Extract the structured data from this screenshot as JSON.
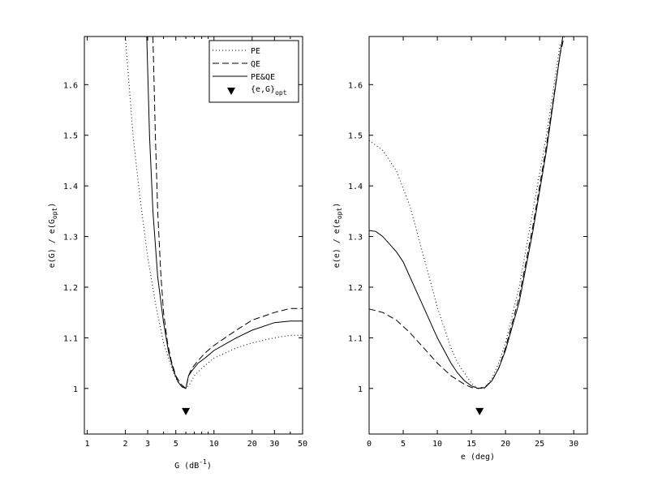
{
  "chart_data": [
    {
      "type": "line",
      "title": "",
      "xscale": "log",
      "xlabel_main": "G (dB",
      "xlabel_sup": "-1",
      "xlabel_tail": ")",
      "ylabel_main": "e(G) / e(G",
      "ylabel_sub": "opt",
      "ylabel_tail": ")",
      "xlim": [
        0.95,
        50
      ],
      "ylim": [
        0.91,
        1.695
      ],
      "xticks": [
        1,
        2,
        3,
        5,
        10,
        20,
        30,
        50
      ],
      "xticklabels": [
        "1",
        "2",
        "3",
        "5",
        "10",
        "20",
        "30",
        "50"
      ],
      "xminorticks": [
        4,
        6,
        7,
        8,
        9,
        40
      ],
      "yticks": [
        1.0,
        1.1,
        1.2,
        1.3,
        1.4,
        1.5,
        1.6
      ],
      "yticklabels": [
        "1",
        "1.1",
        "1.2",
        "1.3",
        "1.4",
        "1.5",
        "1.6"
      ],
      "legend": {
        "placement": "top-right",
        "entries": [
          {
            "label": "PE",
            "style": "dotted"
          },
          {
            "label": "QE",
            "style": "dashed"
          },
          {
            "label": "PE&QE",
            "style": "solid"
          },
          {
            "label_main": "{e,G}",
            "label_sub": "opt",
            "style": "marker"
          }
        ]
      },
      "marker": {
        "x": 6.0,
        "y": 0.955
      },
      "series": [
        {
          "name": "PE",
          "style": "dotted",
          "x": [
            2.0,
            2.3,
            2.6,
            3.0,
            3.5,
            4.0,
            4.5,
            5.0,
            5.5,
            6.0,
            6.5,
            7.0,
            8.0,
            10.0,
            15.0,
            20.0,
            30.0,
            40.0,
            50.0
          ],
          "y": [
            1.695,
            1.5,
            1.38,
            1.26,
            1.16,
            1.09,
            1.05,
            1.02,
            1.006,
            1.0,
            1.01,
            1.025,
            1.04,
            1.06,
            1.08,
            1.09,
            1.1,
            1.105,
            1.105
          ]
        },
        {
          "name": "QE",
          "style": "dashed",
          "x": [
            3.3,
            3.45,
            3.6,
            3.8,
            4.0,
            4.3,
            4.6,
            5.0,
            5.5,
            6.0,
            6.3,
            6.7,
            7.5,
            8.5,
            10.0,
            15.0,
            20.0,
            30.0,
            40.0,
            50.0
          ],
          "y": [
            1.695,
            1.5,
            1.35,
            1.23,
            1.15,
            1.09,
            1.055,
            1.025,
            1.008,
            1.0,
            1.025,
            1.04,
            1.055,
            1.07,
            1.085,
            1.115,
            1.135,
            1.15,
            1.158,
            1.158
          ]
        },
        {
          "name": "PE&QE",
          "style": "solid",
          "x": [
            2.95,
            3.1,
            3.3,
            3.6,
            4.0,
            4.4,
            4.8,
            5.2,
            5.6,
            6.0,
            6.3,
            6.7,
            7.5,
            8.5,
            10.0,
            15.0,
            20.0,
            30.0,
            40.0,
            50.0
          ],
          "y": [
            1.695,
            1.5,
            1.35,
            1.22,
            1.13,
            1.07,
            1.035,
            1.013,
            1.003,
            1.0,
            1.025,
            1.035,
            1.05,
            1.06,
            1.075,
            1.1,
            1.115,
            1.13,
            1.133,
            1.133
          ]
        }
      ]
    },
    {
      "type": "line",
      "title": "",
      "xscale": "linear",
      "xlabel_main": "e (deg)",
      "ylabel_main": "e(e) / e(e",
      "ylabel_sub": "opt",
      "ylabel_tail": ")",
      "xlim": [
        0,
        32
      ],
      "ylim": [
        0.91,
        1.695
      ],
      "xticks": [
        0,
        5,
        10,
        15,
        20,
        25,
        30
      ],
      "xticklabels": [
        "0",
        "5",
        "10",
        "15",
        "20",
        "25",
        "30"
      ],
      "yticks": [
        1.0,
        1.1,
        1.2,
        1.3,
        1.4,
        1.5,
        1.6
      ],
      "yticklabels": [
        "1",
        "1.1",
        "1.2",
        "1.3",
        "1.4",
        "1.5",
        "1.6"
      ],
      "marker": {
        "x": 16.2,
        "y": 0.955
      },
      "series": [
        {
          "name": "PE",
          "style": "dotted",
          "x": [
            0,
            2,
            4,
            6,
            7,
            8,
            9,
            10,
            11,
            12,
            13,
            14,
            15,
            16,
            17,
            18,
            19,
            20,
            22,
            24,
            26,
            28
          ],
          "y": [
            1.49,
            1.47,
            1.43,
            1.36,
            1.31,
            1.26,
            1.21,
            1.16,
            1.12,
            1.08,
            1.05,
            1.03,
            1.01,
            1.0,
            1.0,
            1.02,
            1.05,
            1.09,
            1.2,
            1.35,
            1.5,
            1.68
          ]
        },
        {
          "name": "QE",
          "style": "dashed",
          "x": [
            0,
            2,
            4,
            6,
            8,
            10,
            12,
            14,
            15,
            16,
            17,
            18,
            19,
            20,
            22,
            24,
            26,
            28,
            28.6
          ],
          "y": [
            1.157,
            1.15,
            1.135,
            1.11,
            1.08,
            1.05,
            1.025,
            1.008,
            1.002,
            1.0,
            1.003,
            1.015,
            1.04,
            1.08,
            1.18,
            1.32,
            1.48,
            1.66,
            1.695
          ]
        },
        {
          "name": "PE&QE",
          "style": "solid",
          "x": [
            0,
            1,
            2,
            3,
            4,
            5,
            6,
            7,
            8,
            9,
            10,
            11,
            12,
            13,
            14,
            15,
            16,
            17,
            18,
            19,
            20,
            22,
            24,
            26,
            28,
            28.4
          ],
          "y": [
            1.312,
            1.31,
            1.3,
            1.285,
            1.27,
            1.25,
            1.22,
            1.19,
            1.16,
            1.13,
            1.1,
            1.075,
            1.05,
            1.03,
            1.015,
            1.005,
            1.0,
            1.002,
            1.015,
            1.04,
            1.075,
            1.17,
            1.31,
            1.47,
            1.66,
            1.695
          ]
        }
      ]
    }
  ]
}
